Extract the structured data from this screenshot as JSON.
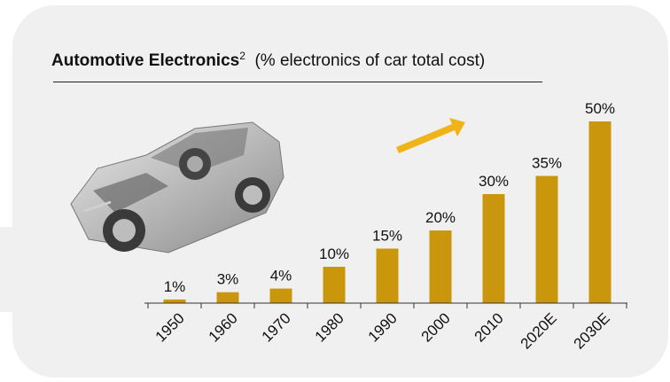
{
  "slide": {
    "title_bold": "Automotive Electronics",
    "title_sup": "2",
    "title_rest": "(% electronics of car total cost)"
  },
  "colors": {
    "bar": "#c9960c",
    "arrow": "#f0b418",
    "panel": "#f0f0f0"
  },
  "chart_data": {
    "type": "bar",
    "title": "Automotive Electronics (% electronics of car total cost)",
    "categories": [
      "1950",
      "1960",
      "1970",
      "1980",
      "1990",
      "2000",
      "2010",
      "2020E",
      "2030E"
    ],
    "values": [
      1,
      3,
      4,
      10,
      15,
      20,
      30,
      35,
      50
    ],
    "data_labels": [
      "1%",
      "3%",
      "4%",
      "10%",
      "15%",
      "20%",
      "30%",
      "35%",
      "50%"
    ],
    "ylim": [
      0,
      50
    ],
    "grid": false,
    "legend": "none"
  }
}
